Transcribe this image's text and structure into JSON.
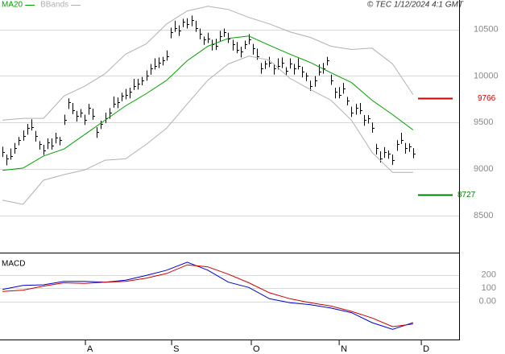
{
  "chart_data": [
    {
      "type": "ohlc",
      "source": "© TEC 1/12/2024 4:1 GMT",
      "xlim": [
        -0.6,
        111.2
      ],
      "ylim": [
        8110,
        10800
      ],
      "yticks": [
        8500,
        9000,
        9500,
        10000,
        10500
      ],
      "grid": true,
      "bar_color": "#000000",
      "x": [
        0,
        1,
        2,
        3,
        4,
        5,
        6,
        7,
        8,
        9,
        10,
        11,
        12,
        13,
        14,
        15,
        16,
        17,
        18,
        19,
        20,
        21,
        22,
        23,
        24,
        25,
        26,
        27,
        28,
        29,
        30,
        31,
        32,
        33,
        34,
        35,
        36,
        37,
        38,
        39,
        40,
        41,
        42,
        43,
        44,
        45,
        46,
        47,
        48,
        49,
        50,
        51,
        52,
        53,
        54,
        55,
        56,
        57,
        58,
        59,
        60,
        61,
        62,
        63,
        64,
        65,
        66,
        67,
        68,
        69,
        70,
        71,
        72,
        73,
        74,
        75,
        76,
        77,
        78,
        79,
        80,
        81,
        82,
        83,
        84,
        85,
        86,
        87,
        88,
        89,
        90,
        91,
        92,
        93,
        94,
        95,
        96,
        97,
        98,
        99,
        100
      ],
      "high": [
        9240,
        9155,
        9220,
        9280,
        9345,
        9415,
        9485,
        9535,
        9410,
        9300,
        9260,
        9330,
        9330,
        9390,
        9345,
        9585,
        9760,
        9710,
        9625,
        9645,
        9585,
        9700,
        9650,
        9450,
        9520,
        9605,
        9655,
        9780,
        9770,
        9820,
        9860,
        9875,
        9970,
        9970,
        9990,
        10060,
        10130,
        10190,
        10200,
        10205,
        10275,
        10520,
        10595,
        10545,
        10615,
        10620,
        10650,
        10595,
        10510,
        10425,
        10465,
        10390,
        10400,
        10485,
        10510,
        10465,
        10390,
        10365,
        10315,
        10380,
        10450,
        10345,
        10295,
        10140,
        10165,
        10205,
        10130,
        10190,
        10200,
        10095,
        10190,
        10130,
        10190,
        10100,
        10035,
        9950,
        10000,
        10125,
        10140,
        10205,
        10015,
        9875,
        9880,
        9925,
        9775,
        9670,
        9700,
        9710,
        9580,
        9580,
        9500,
        9270,
        9190,
        9235,
        9200,
        9155,
        9310,
        9390,
        9280,
        9275,
        9225
      ],
      "low": [
        9130,
        9040,
        9100,
        9165,
        9255,
        9305,
        9370,
        9415,
        9295,
        9210,
        9150,
        9215,
        9210,
        9275,
        9255,
        9475,
        9645,
        9590,
        9510,
        9555,
        9475,
        9585,
        9530,
        9335,
        9430,
        9495,
        9540,
        9660,
        9655,
        9730,
        9750,
        9760,
        9850,
        9855,
        9900,
        9950,
        10015,
        10070,
        10085,
        10115,
        10165,
        10405,
        10475,
        10430,
        10525,
        10510,
        10535,
        10475,
        10395,
        10335,
        10355,
        10275,
        10280,
        10370,
        10420,
        10355,
        10275,
        10245,
        10200,
        10290,
        10340,
        10230,
        10175,
        10025,
        10075,
        10095,
        10015,
        10070,
        10085,
        10005,
        10080,
        10015,
        10070,
        9985,
        9945,
        9840,
        9885,
        10005,
        10025,
        10115,
        9905,
        9760,
        9760,
        9810,
        9685,
        9560,
        9585,
        9590,
        9465,
        9490,
        9390,
        9155,
        9070,
        9120,
        9110,
        9045,
        9195,
        9270,
        9165,
        9185,
        9115
      ],
      "close": [
        9180,
        9110,
        9140,
        9225,
        9310,
        9355,
        9440,
        9455,
        9355,
        9265,
        9200,
        9285,
        9250,
        9335,
        9310,
        9525,
        9715,
        9630,
        9570,
        9610,
        9525,
        9655,
        9570,
        9395,
        9485,
        9545,
        9610,
        9700,
        9715,
        9785,
        9800,
        9830,
        9890,
        9915,
        9955,
        10000,
        10085,
        10110,
        10145,
        10170,
        10215,
        10475,
        10515,
        10490,
        10580,
        10560,
        10605,
        10515,
        10455,
        10390,
        10405,
        10345,
        10320,
        10430,
        10475,
        10405,
        10345,
        10285,
        10260,
        10345,
        10390,
        10300,
        10215,
        10085,
        10130,
        10145,
        10085,
        10110,
        10145,
        10060,
        10130,
        10085,
        10110,
        10045,
        10000,
        9890,
        9955,
        10045,
        10085,
        10170,
        9955,
        9830,
        9800,
        9870,
        9740,
        9610,
        9655,
        9630,
        9525,
        9545,
        9440,
        9225,
        9110,
        9180,
        9165,
        9095,
        9265,
        9310,
        9225,
        9240,
        9165
      ],
      "series": [
        {
          "name": "MA20",
          "color": "#00a000",
          "x": [
            0,
            5,
            10,
            15,
            20,
            25,
            30,
            35,
            40,
            45,
            50,
            55,
            60,
            65,
            70,
            75,
            80,
            85,
            90,
            95,
            100
          ],
          "values": [
            8985,
            9010,
            9140,
            9215,
            9370,
            9525,
            9680,
            9810,
            9955,
            10165,
            10320,
            10405,
            10430,
            10330,
            10235,
            10145,
            10035,
            9930,
            9740,
            9585,
            9420
          ]
        },
        {
          "name": "BBands",
          "color": "#b0b0b0",
          "x": [
            0,
            5,
            10,
            15,
            20,
            25,
            30,
            35,
            40,
            45,
            50,
            55,
            60,
            65,
            70,
            75,
            80,
            85,
            90,
            95,
            100
          ],
          "upper": [
            9525,
            9545,
            9545,
            9785,
            9890,
            10025,
            10235,
            10345,
            10560,
            10700,
            10750,
            10715,
            10630,
            10560,
            10475,
            10415,
            10320,
            10285,
            10300,
            10130,
            9800
          ],
          "lower": [
            8665,
            8620,
            8880,
            8940,
            8990,
            9095,
            9110,
            9265,
            9440,
            9700,
            9955,
            10130,
            10215,
            10170,
            9975,
            9855,
            9740,
            9525,
            9180,
            8965,
            8965
          ]
        }
      ],
      "levels": [
        {
          "value": 9766,
          "color": "#cc0000"
        },
        {
          "value": 8727,
          "color": "#008000"
        }
      ]
    },
    {
      "type": "line",
      "title": "MACD",
      "xlim": [
        -0.6,
        111.2
      ],
      "ylim": [
        -275,
        355
      ],
      "yticks": [
        {
          "value": 0,
          "label": "0.00"
        },
        100,
        200
      ],
      "grid": true,
      "xticks": [
        {
          "value": 20.2,
          "label": "A"
        },
        {
          "value": 41.2,
          "label": "S"
        },
        {
          "value": 60.6,
          "label": "O"
        },
        {
          "value": 82,
          "label": "N"
        },
        {
          "value": 102,
          "label": "D"
        }
      ],
      "series": [
        {
          "color": "#0000cc",
          "x": [
            0,
            5,
            10,
            15,
            20,
            25,
            30,
            35,
            40,
            45,
            50,
            55,
            60,
            65,
            70,
            75,
            80,
            85,
            90,
            95,
            100
          ],
          "values": [
            90,
            120,
            125,
            150,
            150,
            145,
            160,
            195,
            235,
            295,
            235,
            145,
            105,
            20,
            -10,
            -25,
            -50,
            -85,
            -160,
            -210,
            -160
          ]
        },
        {
          "color": "#cc0000",
          "x": [
            0,
            5,
            10,
            15,
            20,
            25,
            30,
            35,
            40,
            45,
            50,
            55,
            60,
            65,
            70,
            75,
            80,
            85,
            90,
            95,
            100
          ],
          "values": [
            75,
            85,
            115,
            140,
            135,
            145,
            150,
            175,
            210,
            275,
            260,
            205,
            140,
            65,
            20,
            -10,
            -35,
            -75,
            -125,
            -190,
            -170
          ]
        }
      ]
    }
  ]
}
